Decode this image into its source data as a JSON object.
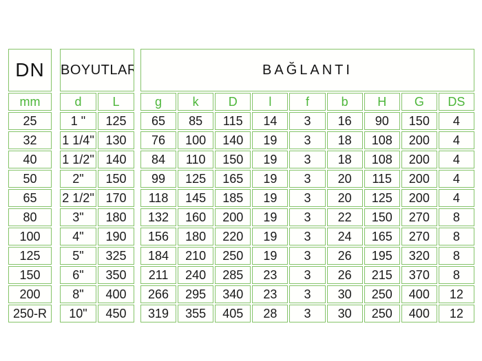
{
  "chart_data": {
    "type": "table",
    "title": "",
    "groups": [
      {
        "header": "DN",
        "subheaders": [
          "mm"
        ],
        "rows": [
          [
            "25"
          ],
          [
            "32"
          ],
          [
            "40"
          ],
          [
            "50"
          ],
          [
            "65"
          ],
          [
            "80"
          ],
          [
            "100"
          ],
          [
            "125"
          ],
          [
            "150"
          ],
          [
            "200"
          ],
          [
            "250-R"
          ]
        ]
      },
      {
        "header": "BOYUTLAR",
        "subheaders": [
          "d",
          "L"
        ],
        "rows": [
          [
            "1 \"",
            125
          ],
          [
            "1 1/4\"",
            130
          ],
          [
            "1 1/2\"",
            140
          ],
          [
            "2\"",
            150
          ],
          [
            "2 1/2\"",
            170
          ],
          [
            "3\"",
            180
          ],
          [
            "4\"",
            190
          ],
          [
            "5\"",
            325
          ],
          [
            "6\"",
            350
          ],
          [
            "8\"",
            400
          ],
          [
            "10\"",
            450
          ]
        ]
      },
      {
        "header": "BAĞLANTI",
        "subheaders": [
          "g",
          "k",
          "D",
          "l",
          "f",
          "b",
          "H",
          "G",
          "DS"
        ],
        "rows": [
          [
            65,
            85,
            115,
            14,
            3,
            16,
            90,
            150,
            4
          ],
          [
            76,
            100,
            140,
            19,
            3,
            18,
            108,
            200,
            4
          ],
          [
            84,
            110,
            150,
            19,
            3,
            18,
            108,
            200,
            4
          ],
          [
            99,
            125,
            165,
            19,
            3,
            20,
            115,
            200,
            4
          ],
          [
            118,
            145,
            185,
            19,
            3,
            20,
            125,
            200,
            4
          ],
          [
            132,
            160,
            200,
            19,
            3,
            22,
            150,
            270,
            8
          ],
          [
            156,
            180,
            220,
            19,
            3,
            24,
            165,
            270,
            8
          ],
          [
            184,
            210,
            250,
            19,
            3,
            26,
            195,
            320,
            8
          ],
          [
            211,
            240,
            285,
            23,
            3,
            26,
            215,
            370,
            8
          ],
          [
            266,
            295,
            340,
            23,
            3,
            30,
            250,
            400,
            12
          ],
          [
            319,
            355,
            405,
            28,
            3,
            30,
            250,
            400,
            12
          ]
        ]
      }
    ],
    "layout": {
      "grid": true,
      "legend": "none"
    }
  },
  "colors": {
    "border_green": "#84c368",
    "subheader_text_green": "#4db63a",
    "data_text": "#181818",
    "background": "#ffffff"
  }
}
